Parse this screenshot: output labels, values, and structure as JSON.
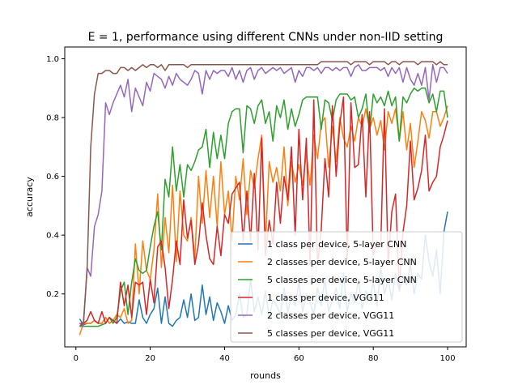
{
  "chart_data": {
    "type": "line",
    "title": "E = 1, performance using different CNNs under non-IID setting",
    "xlabel": "rounds",
    "ylabel": "accuracy",
    "xlim": [
      -3,
      105
    ],
    "ylim": [
      0.02,
      1.04
    ],
    "xticks": [
      0,
      20,
      40,
      60,
      80,
      100
    ],
    "xtick_labels": [
      "0",
      "20",
      "40",
      "60",
      "80",
      "100"
    ],
    "yticks": [
      0.2,
      0.4,
      0.6,
      0.8,
      1.0
    ],
    "ytick_labels": [
      "0.2",
      "0.4",
      "0.6",
      "0.8",
      "1.0"
    ],
    "grid": false,
    "legend_position": "lower-right",
    "x": [
      1,
      2,
      3,
      4,
      5,
      6,
      7,
      8,
      9,
      10,
      11,
      12,
      13,
      14,
      15,
      16,
      17,
      18,
      19,
      20,
      21,
      22,
      23,
      24,
      25,
      26,
      27,
      28,
      29,
      30,
      31,
      32,
      33,
      34,
      35,
      36,
      37,
      38,
      39,
      40,
      41,
      42,
      43,
      44,
      45,
      46,
      47,
      48,
      49,
      50,
      51,
      52,
      53,
      54,
      55,
      56,
      57,
      58,
      59,
      60,
      61,
      62,
      63,
      64,
      65,
      66,
      67,
      68,
      69,
      70,
      71,
      72,
      73,
      74,
      75,
      76,
      77,
      78,
      79,
      80,
      81,
      82,
      83,
      84,
      85,
      86,
      87,
      88,
      89,
      90,
      91,
      92,
      93,
      94,
      95,
      96,
      97,
      98,
      99,
      100
    ],
    "series": [
      {
        "name": "1 class per device, 5-layer CNN",
        "color": "#1f77b4",
        "values": [
          0.115,
          0.095,
          0.1,
          0.1,
          0.11,
          0.1,
          0.1,
          0.12,
          0.1,
          0.11,
          0.1,
          0.115,
          0.1,
          0.105,
          0.1,
          0.1,
          0.18,
          0.12,
          0.1,
          0.13,
          0.15,
          0.22,
          0.1,
          0.19,
          0.1,
          0.09,
          0.11,
          0.12,
          0.18,
          0.12,
          0.2,
          0.11,
          0.12,
          0.23,
          0.13,
          0.19,
          0.11,
          0.17,
          0.14,
          0.1,
          0.16,
          0.11,
          0.13,
          0.2,
          0.12,
          0.13,
          0.25,
          0.14,
          0.19,
          0.13,
          0.21,
          0.12,
          0.18,
          0.16,
          0.13,
          0.22,
          0.14,
          0.19,
          0.16,
          0.24,
          0.14,
          0.2,
          0.17,
          0.13,
          0.22,
          0.16,
          0.25,
          0.14,
          0.18,
          0.22,
          0.15,
          0.27,
          0.14,
          0.2,
          0.17,
          0.25,
          0.15,
          0.21,
          0.18,
          0.24,
          0.16,
          0.29,
          0.2,
          0.25,
          0.18,
          0.27,
          0.21,
          0.26,
          0.23,
          0.3,
          0.2,
          0.27,
          0.25,
          0.4,
          0.31,
          0.26,
          0.35,
          0.2,
          0.41,
          0.48
        ]
      },
      {
        "name": "2 classes per device, 5-layer CNN",
        "color": "#ff7f0e",
        "values": [
          0.06,
          0.1,
          0.1,
          0.1,
          0.11,
          0.1,
          0.1,
          0.12,
          0.1,
          0.11,
          0.13,
          0.12,
          0.15,
          0.1,
          0.11,
          0.37,
          0.2,
          0.38,
          0.28,
          0.25,
          0.35,
          0.54,
          0.29,
          0.46,
          0.34,
          0.57,
          0.31,
          0.55,
          0.4,
          0.38,
          0.46,
          0.32,
          0.6,
          0.44,
          0.62,
          0.46,
          0.6,
          0.43,
          0.65,
          0.47,
          0.55,
          0.38,
          0.6,
          0.52,
          0.66,
          0.47,
          0.62,
          0.56,
          0.66,
          0.74,
          0.37,
          0.65,
          0.58,
          0.63,
          0.55,
          0.7,
          0.5,
          0.65,
          0.58,
          0.64,
          0.57,
          0.68,
          0.57,
          0.74,
          0.66,
          0.78,
          0.8,
          0.63,
          0.77,
          0.65,
          0.8,
          0.73,
          0.7,
          0.77,
          0.72,
          0.8,
          0.77,
          0.83,
          0.76,
          0.8,
          0.74,
          0.79,
          0.69,
          0.82,
          0.78,
          0.83,
          0.72,
          0.82,
          0.69,
          0.78,
          0.63,
          0.72,
          0.82,
          0.79,
          0.73,
          0.82,
          0.82,
          0.77,
          0.8,
          0.84
        ]
      },
      {
        "name": "5 classes per device, 5-layer CNN",
        "color": "#2ca02c",
        "values": [
          0.09,
          0.09,
          0.09,
          0.09,
          0.09,
          0.09,
          0.095,
          0.1,
          0.12,
          0.1,
          0.12,
          0.21,
          0.24,
          0.13,
          0.24,
          0.32,
          0.28,
          0.27,
          0.28,
          0.36,
          0.43,
          0.48,
          0.35,
          0.59,
          0.53,
          0.7,
          0.55,
          0.64,
          0.53,
          0.64,
          0.62,
          0.65,
          0.69,
          0.7,
          0.76,
          0.63,
          0.75,
          0.66,
          0.74,
          0.66,
          0.78,
          0.82,
          0.83,
          0.83,
          0.68,
          0.84,
          0.83,
          0.78,
          0.84,
          0.86,
          0.78,
          0.82,
          0.72,
          0.84,
          0.8,
          0.86,
          0.76,
          0.83,
          0.77,
          0.81,
          0.86,
          0.87,
          0.87,
          0.87,
          0.87,
          0.76,
          0.86,
          0.85,
          0.79,
          0.86,
          0.88,
          0.88,
          0.88,
          0.86,
          0.87,
          0.8,
          0.83,
          0.88,
          0.75,
          0.88,
          0.85,
          0.87,
          0.84,
          0.89,
          0.84,
          0.87,
          0.72,
          0.87,
          0.85,
          0.88,
          0.9,
          0.89,
          0.9,
          0.9,
          0.85,
          0.88,
          0.82,
          0.89,
          0.89,
          0.8
        ]
      },
      {
        "name": "1 class per device, VGG11",
        "color": "#d62728",
        "values": [
          0.1,
          0.1,
          0.11,
          0.14,
          0.11,
          0.1,
          0.14,
          0.1,
          0.12,
          0.11,
          0.1,
          0.24,
          0.16,
          0.23,
          0.12,
          0.24,
          0.23,
          0.24,
          0.13,
          0.25,
          0.17,
          0.36,
          0.38,
          0.29,
          0.15,
          0.25,
          0.38,
          0.3,
          0.52,
          0.39,
          0.45,
          0.3,
          0.37,
          0.51,
          0.4,
          0.32,
          0.3,
          0.43,
          0.33,
          0.47,
          0.44,
          0.54,
          0.56,
          0.58,
          0.38,
          0.55,
          0.38,
          0.61,
          0.35,
          0.73,
          0.33,
          0.45,
          0.37,
          0.58,
          0.44,
          0.6,
          0.52,
          0.7,
          0.4,
          0.76,
          0.52,
          0.73,
          0.3,
          0.86,
          0.3,
          0.42,
          0.66,
          0.53,
          0.84,
          0.6,
          0.78,
          0.87,
          0.32,
          0.85,
          0.63,
          0.64,
          0.81,
          0.53,
          0.82,
          0.33,
          0.38,
          0.36,
          0.83,
          0.3,
          0.48,
          0.54,
          0.22,
          0.41,
          0.5,
          0.72,
          0.52,
          0.56,
          0.62,
          0.74,
          0.55,
          0.58,
          0.6,
          0.7,
          0.74,
          0.79
        ]
      },
      {
        "name": "2 classes per device, VGG11",
        "color": "#9467bd",
        "values": [
          0.1,
          0.09,
          0.29,
          0.26,
          0.43,
          0.47,
          0.55,
          0.85,
          0.81,
          0.85,
          0.88,
          0.91,
          0.87,
          0.93,
          0.82,
          0.9,
          0.87,
          0.84,
          0.92,
          0.89,
          0.95,
          0.94,
          0.93,
          0.9,
          0.94,
          0.91,
          0.95,
          0.93,
          0.92,
          0.91,
          0.93,
          0.96,
          0.95,
          0.88,
          0.96,
          0.93,
          0.96,
          0.95,
          0.96,
          0.96,
          0.94,
          0.97,
          0.93,
          0.96,
          0.92,
          0.96,
          0.97,
          0.93,
          0.96,
          0.97,
          0.95,
          0.96,
          0.97,
          0.96,
          0.97,
          0.95,
          0.96,
          0.97,
          0.92,
          0.96,
          0.94,
          0.97,
          0.97,
          0.96,
          0.97,
          0.95,
          0.97,
          0.97,
          0.96,
          0.97,
          0.96,
          0.97,
          0.97,
          0.94,
          0.97,
          0.98,
          0.96,
          0.96,
          0.97,
          0.97,
          0.97,
          0.96,
          0.97,
          0.94,
          0.97,
          0.95,
          0.97,
          0.92,
          0.97,
          0.93,
          0.91,
          0.95,
          0.91,
          0.97,
          0.86,
          0.98,
          0.92,
          0.97,
          0.97,
          0.95
        ]
      },
      {
        "name": "5 classes per device, VGG11",
        "color": "#8c564b",
        "values": [
          0.09,
          0.1,
          0.28,
          0.7,
          0.88,
          0.95,
          0.95,
          0.96,
          0.96,
          0.95,
          0.95,
          0.97,
          0.97,
          0.96,
          0.97,
          0.96,
          0.97,
          0.98,
          0.97,
          0.98,
          0.98,
          0.97,
          0.98,
          0.96,
          0.98,
          0.98,
          0.98,
          0.98,
          0.98,
          0.97,
          0.98,
          0.98,
          0.98,
          0.98,
          0.98,
          0.98,
          0.98,
          0.98,
          0.98,
          0.98,
          0.98,
          0.98,
          0.98,
          0.98,
          0.98,
          0.98,
          0.98,
          0.98,
          0.98,
          0.98,
          0.98,
          0.98,
          0.98,
          0.98,
          0.98,
          0.98,
          0.98,
          0.98,
          0.98,
          0.98,
          0.98,
          0.98,
          0.98,
          0.98,
          0.98,
          0.99,
          0.99,
          0.99,
          0.99,
          0.99,
          0.99,
          0.99,
          0.99,
          0.98,
          0.99,
          0.99,
          0.99,
          0.99,
          0.98,
          0.99,
          0.99,
          0.99,
          0.99,
          0.98,
          0.99,
          0.99,
          0.98,
          0.99,
          0.99,
          0.99,
          0.99,
          0.98,
          0.99,
          0.99,
          0.99,
          0.99,
          0.98,
          0.99,
          0.98,
          0.98
        ]
      }
    ]
  }
}
